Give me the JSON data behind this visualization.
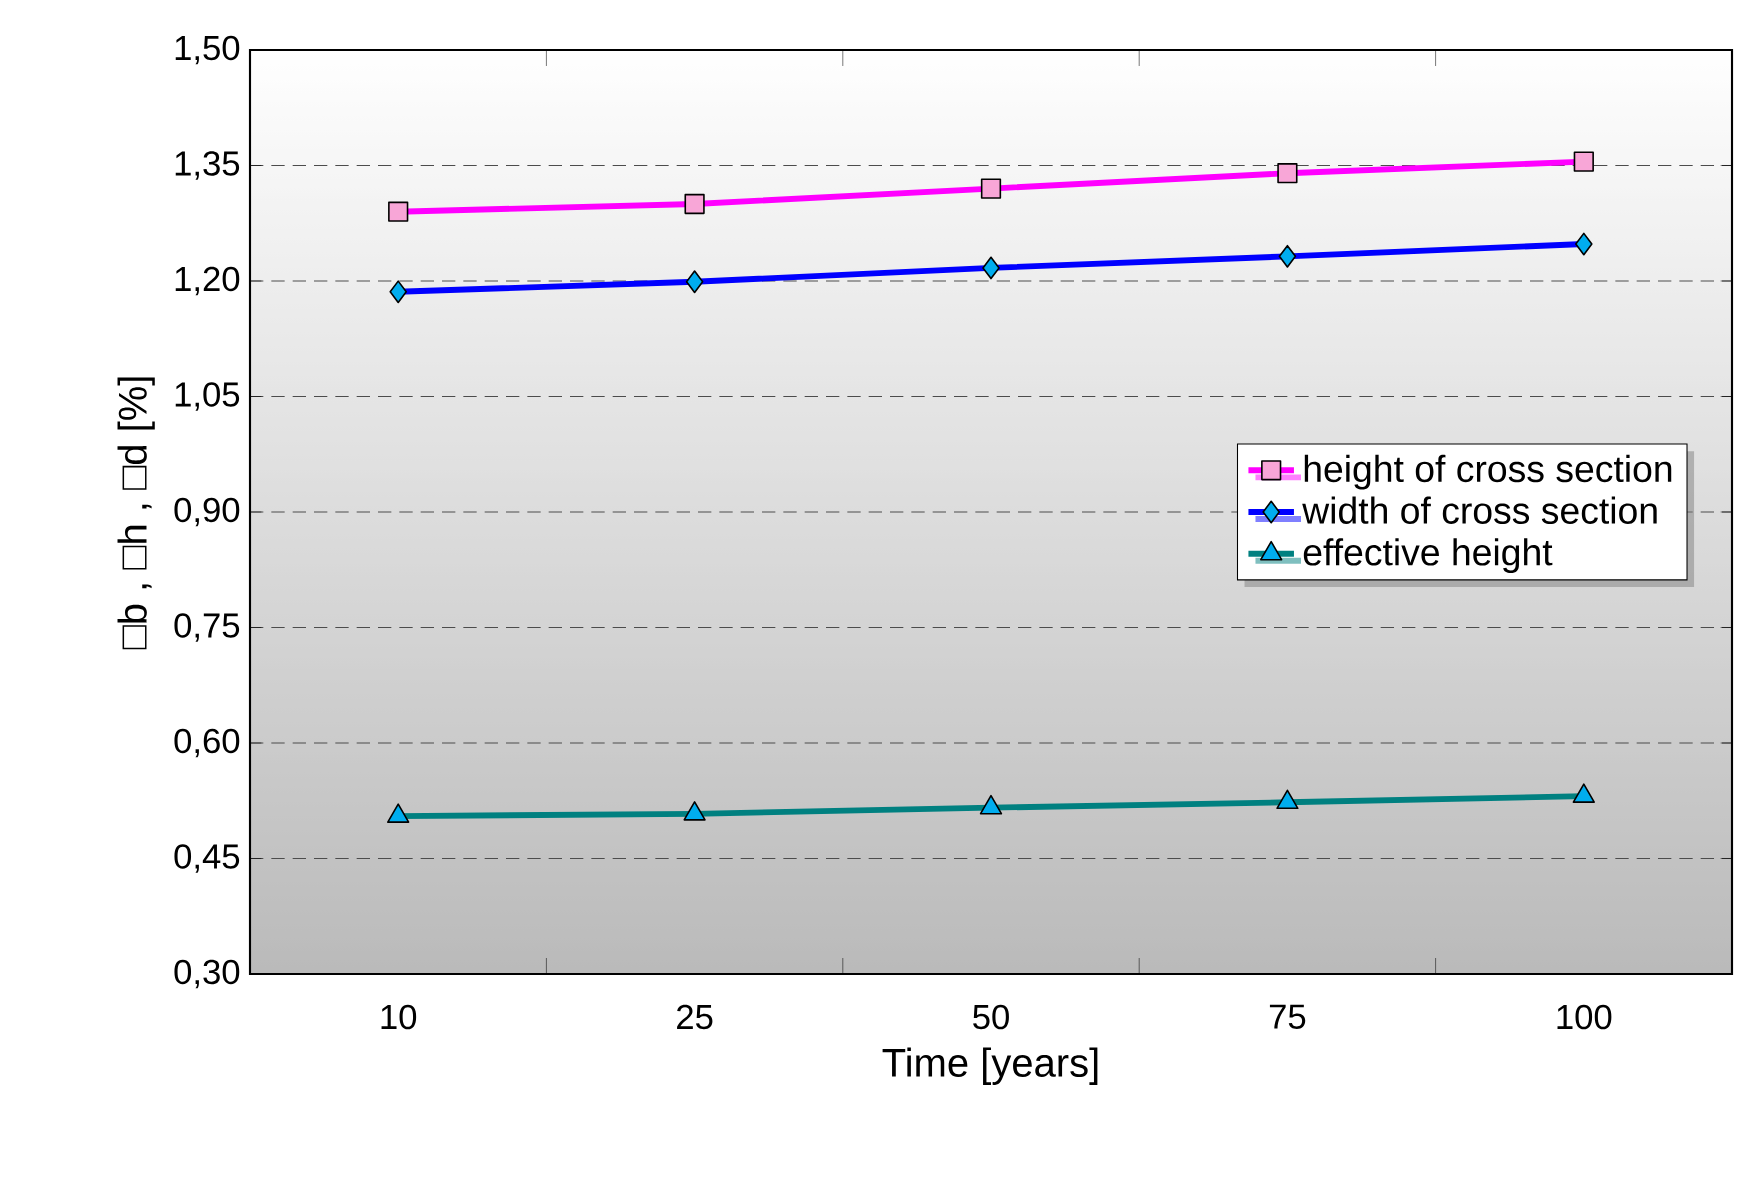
{
  "chart_data": {
    "type": "line",
    "xlabel": "Time [years]",
    "ylabel": "□b , □h , □d [%]",
    "categories": [
      "10",
      "25",
      "50",
      "75",
      "100"
    ],
    "series": [
      {
        "name": "height of cross section",
        "color": "#ff00ff",
        "marker": "square",
        "values": [
          1.29,
          1.3,
          1.32,
          1.34,
          1.355
        ]
      },
      {
        "name": "width of cross section",
        "color": "#0000ff",
        "marker": "diamond",
        "values": [
          1.186,
          1.199,
          1.217,
          1.232,
          1.248
        ]
      },
      {
        "name": "effective height",
        "color": "#008080",
        "marker": "triangle",
        "values": [
          0.505,
          0.508,
          0.516,
          0.523,
          0.531
        ]
      }
    ],
    "ylim": [
      0.3,
      1.5
    ],
    "yticks": [
      {
        "value": 0.3,
        "label": "0,30"
      },
      {
        "value": 0.45,
        "label": "0,45"
      },
      {
        "value": 0.6,
        "label": "0,60"
      },
      {
        "value": 0.75,
        "label": "0,75"
      },
      {
        "value": 0.9,
        "label": "0,90"
      },
      {
        "value": 1.05,
        "label": "1,05"
      },
      {
        "value": 1.2,
        "label": "1,20"
      },
      {
        "value": 1.35,
        "label": "1,35"
      },
      {
        "value": 1.5,
        "label": "1,50"
      }
    ],
    "grid": "y",
    "legend": "right",
    "line_style": "solid"
  }
}
